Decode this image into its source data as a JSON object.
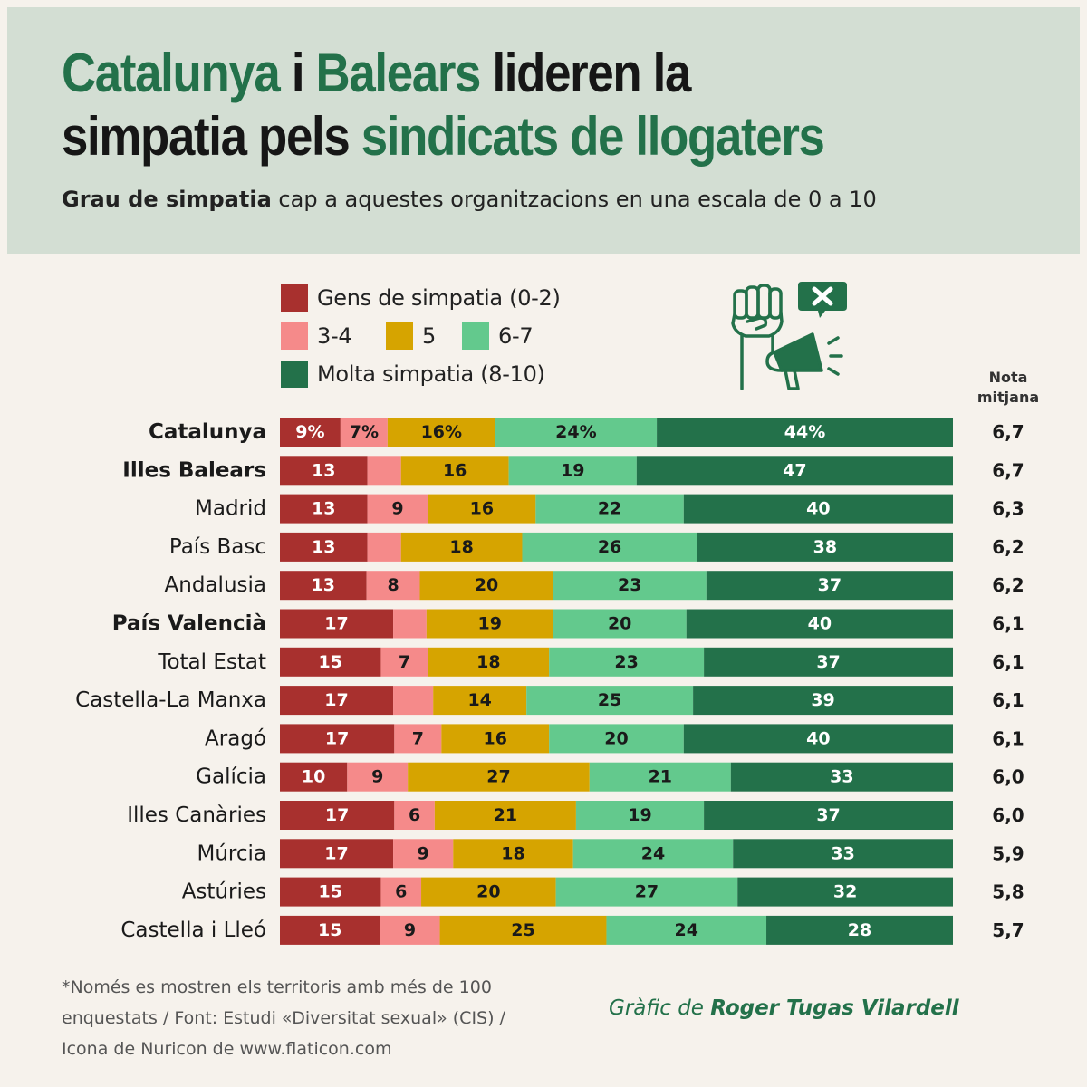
{
  "header": {
    "title_parts": [
      "Catalunya",
      "i",
      "Balears",
      "lideren la",
      "simpatia pels",
      "sindicats de llogaters"
    ],
    "subtitle_bold": "Grau de simpatia",
    "subtitle_rest": "cap a aquestes organitzacions en una escala de 0 a 10"
  },
  "legend": [
    {
      "label": "Gens de simpatia (0-2)",
      "color": "#a8302e"
    },
    {
      "label": "3-4",
      "color": "#f58a8a"
    },
    {
      "label": "5",
      "color": "#d6a400"
    },
    {
      "label": "6-7",
      "color": "#63c98d"
    },
    {
      "label": "Molta simpatia (8-10)",
      "color": "#23714a"
    }
  ],
  "icon": {
    "name": "fist-megaphone-protest-icon",
    "color": "#23714a"
  },
  "mean_header": [
    "Nota",
    "mitjana"
  ],
  "chart_data": {
    "type": "bar",
    "orientation": "horizontal",
    "stacked": true,
    "title": "Catalunya i Balears lideren la simpatia pels sindicats de llogaters",
    "categories": [
      "Catalunya",
      "Illes Balears",
      "Madrid",
      "País Basc",
      "Andalusia",
      "País Valencià",
      "Total Estat",
      "Castella-La Manxa",
      "Aragó",
      "Galícia",
      "Illes Canàries",
      "Múrcia",
      "Astúries",
      "Castella i Lleó"
    ],
    "bold_categories": [
      "Catalunya",
      "Illes Balears",
      "País Valencià"
    ],
    "series": [
      {
        "name": "Gens de simpatia (0-2)",
        "color": "#a8302e",
        "values": [
          9,
          13,
          13,
          13,
          13,
          17,
          15,
          17,
          17,
          10,
          17,
          17,
          15,
          15
        ]
      },
      {
        "name": "3-4",
        "color": "#f58a8a",
        "values": [
          7,
          5,
          9,
          5,
          8,
          5,
          7,
          6,
          7,
          9,
          6,
          9,
          6,
          9
        ]
      },
      {
        "name": "5",
        "color": "#d6a400",
        "values": [
          16,
          16,
          16,
          18,
          20,
          19,
          18,
          14,
          16,
          27,
          21,
          18,
          20,
          25
        ]
      },
      {
        "name": "6-7",
        "color": "#63c98d",
        "values": [
          24,
          19,
          22,
          26,
          23,
          20,
          23,
          25,
          20,
          21,
          19,
          24,
          27,
          24
        ]
      },
      {
        "name": "Molta simpatia (8-10)",
        "color": "#23714a",
        "values": [
          44,
          47,
          40,
          38,
          37,
          40,
          37,
          39,
          40,
          33,
          37,
          33,
          32,
          28
        ]
      }
    ],
    "hidden_labels": {
      "1": [
        1
      ],
      "3": [
        1
      ],
      "5": [
        1
      ],
      "7": [
        1
      ]
    },
    "percent_suffix_rows": [
      0
    ],
    "label_colors": [
      "#ffffff",
      "#1a1a1a",
      "#1a1a1a",
      "#1a1a1a",
      "#ffffff"
    ],
    "mean_scores": [
      "6,7",
      "6,7",
      "6,3",
      "6,2",
      "6,2",
      "6,1",
      "6,1",
      "6,1",
      "6,1",
      "6,0",
      "6,0",
      "5,9",
      "5,8",
      "5,7"
    ],
    "unit": "%"
  },
  "footnote": [
    "*Només es mostren els territoris amb més de 100",
    "enquestats / Font: Estudi «Diversitat sexual» (CIS) /",
    "Icona de Nuricon de www.flaticon.com"
  ],
  "credit": {
    "prefix": "Gràfic de",
    "author": "Roger Tugas Vilardell"
  }
}
